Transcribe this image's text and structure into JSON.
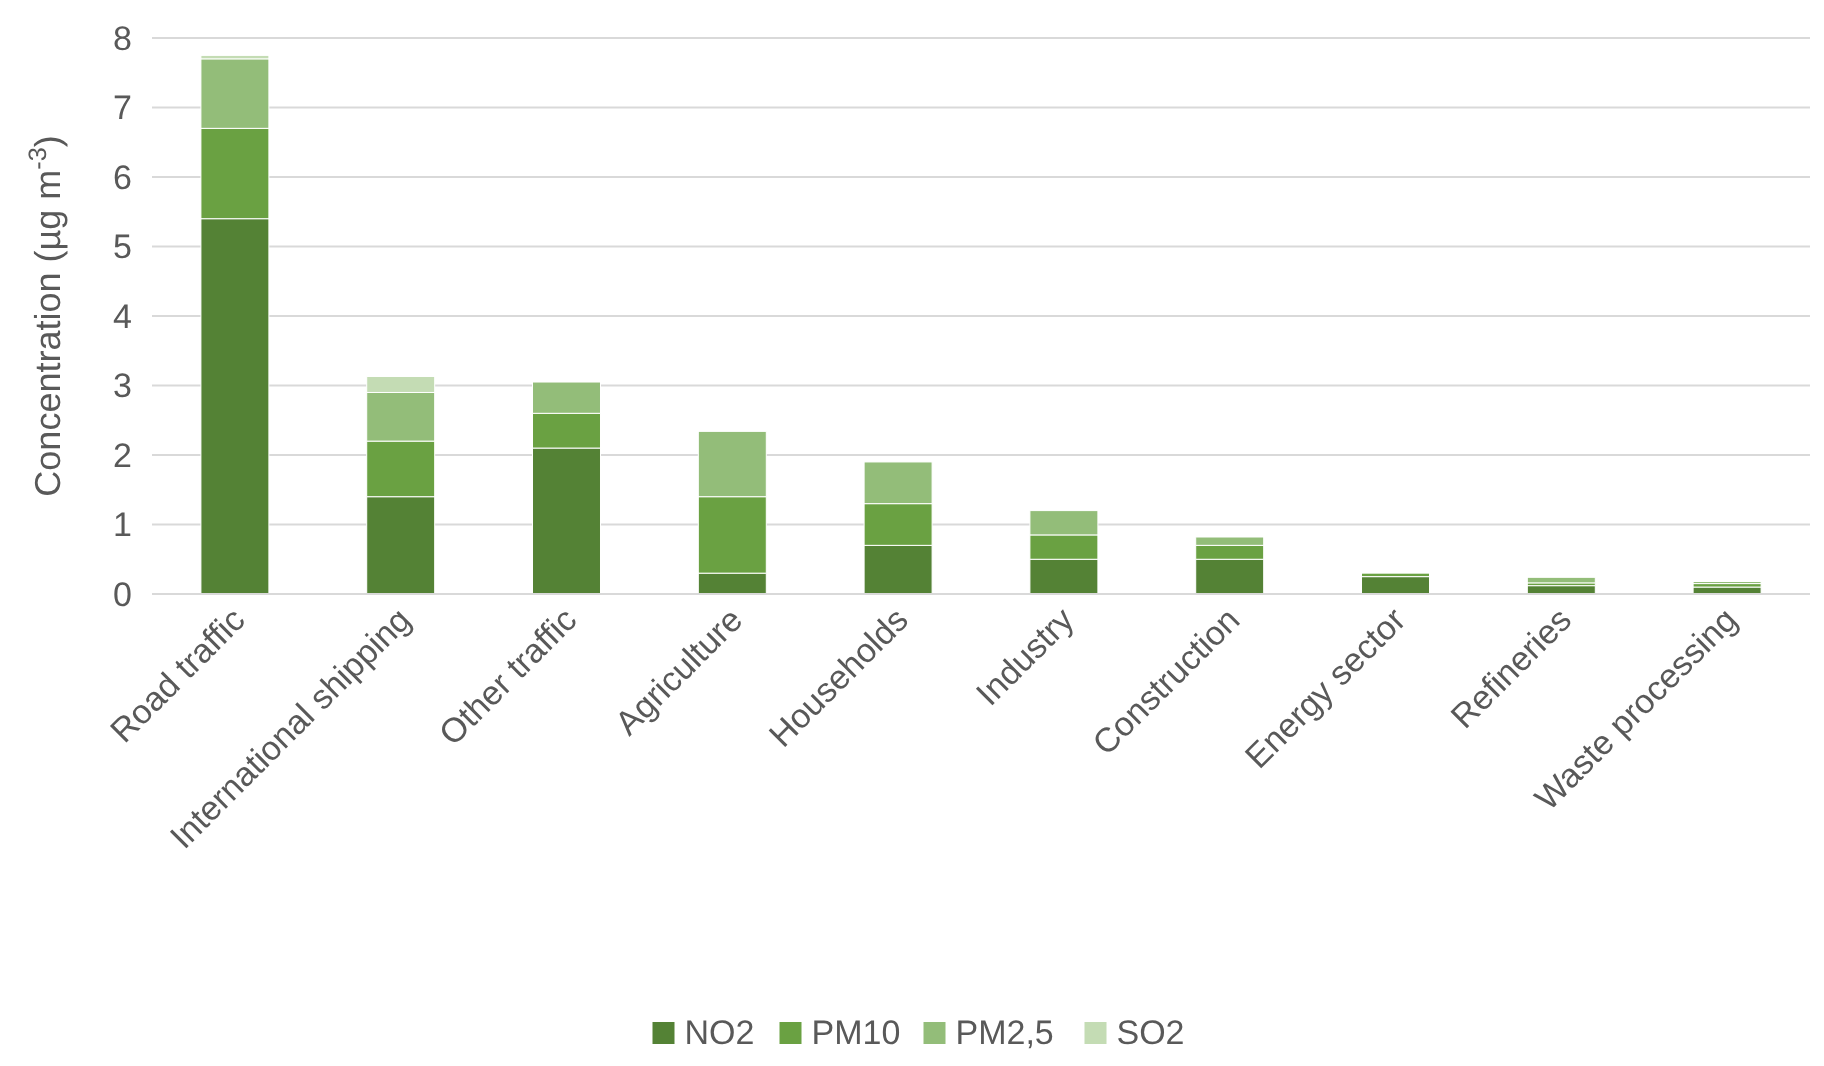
{
  "chart_data": {
    "type": "bar",
    "stacked": true,
    "ylabel": "Concentration (µg m$^{-3}$)",
    "categories": [
      "Road traffic",
      "International shipping",
      "Other traffic",
      "Agriculture",
      "Households",
      "Industry",
      "Construction",
      "Energy sector",
      "Refineries",
      "Waste processing"
    ],
    "series": [
      {
        "name": "NO2",
        "color": "#548235",
        "values": [
          5.4,
          1.4,
          2.1,
          0.3,
          0.7,
          0.5,
          0.5,
          0.25,
          0.12,
          0.1
        ]
      },
      {
        "name": "PM10",
        "color": "#6aa142",
        "values": [
          1.3,
          0.8,
          0.5,
          1.1,
          0.6,
          0.35,
          0.2,
          0.05,
          0.04,
          0.05
        ]
      },
      {
        "name": "PM2,5",
        "color": "#93bd79",
        "values": [
          1.0,
          0.7,
          0.45,
          0.94,
          0.6,
          0.35,
          0.12,
          null,
          0.08,
          0.03
        ]
      },
      {
        "name": "SO2",
        "color": "#c4dcb4",
        "values": [
          0.05,
          0.23,
          null,
          null,
          null,
          null,
          null,
          null,
          null,
          null
        ]
      }
    ],
    "ylim": [
      0,
      8
    ],
    "yticks": [
      0,
      1,
      2,
      3,
      4,
      5,
      6,
      7,
      8
    ],
    "grid": "y",
    "legend": "bottom"
  }
}
